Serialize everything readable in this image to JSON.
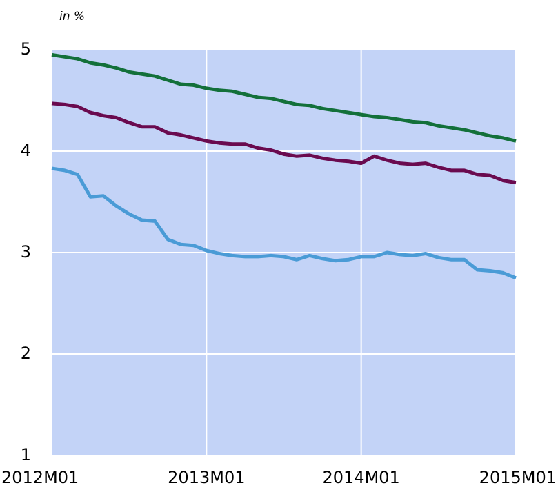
{
  "chart_data": {
    "type": "line",
    "y_axis_label": "in %",
    "categories": [
      "2012M01",
      null,
      null,
      null,
      null,
      null,
      null,
      null,
      null,
      null,
      null,
      null,
      "2013M01",
      null,
      null,
      null,
      null,
      null,
      null,
      null,
      null,
      null,
      null,
      null,
      "2014M01",
      null,
      null,
      null,
      null,
      null,
      null,
      null,
      null,
      null,
      null,
      null,
      "2015M01"
    ],
    "series": [
      {
        "color": "#13703a",
        "values": [
          4.95,
          4.93,
          4.91,
          4.87,
          4.85,
          4.82,
          4.78,
          4.76,
          4.74,
          4.7,
          4.66,
          4.65,
          4.62,
          4.6,
          4.59,
          4.56,
          4.53,
          4.52,
          4.49,
          4.46,
          4.45,
          4.42,
          4.4,
          4.38,
          4.36,
          4.34,
          4.33,
          4.31,
          4.29,
          4.28,
          4.25,
          4.23,
          4.21,
          4.18,
          4.15,
          4.13,
          4.1
        ]
      },
      {
        "color": "#6a0a4f",
        "values": [
          4.47,
          4.46,
          4.44,
          4.38,
          4.35,
          4.33,
          4.28,
          4.24,
          4.24,
          4.18,
          4.16,
          4.13,
          4.1,
          4.08,
          4.07,
          4.07,
          4.03,
          4.01,
          3.97,
          3.95,
          3.96,
          3.93,
          3.91,
          3.9,
          3.88,
          3.95,
          3.91,
          3.88,
          3.87,
          3.88,
          3.84,
          3.81,
          3.81,
          3.77,
          3.76,
          3.71,
          3.69
        ]
      },
      {
        "color": "#4a9bd6",
        "values": [
          3.83,
          3.81,
          3.77,
          3.55,
          3.56,
          3.46,
          3.38,
          3.32,
          3.31,
          3.13,
          3.08,
          3.07,
          3.02,
          2.99,
          2.97,
          2.96,
          2.96,
          2.97,
          2.96,
          2.93,
          2.97,
          2.94,
          2.92,
          2.93,
          2.96,
          2.96,
          3.0,
          2.98,
          2.97,
          2.99,
          2.95,
          2.93,
          2.93,
          2.83,
          2.82,
          2.8,
          2.75
        ]
      }
    ],
    "ylim": [
      1,
      5
    ],
    "yticks": [
      1,
      2,
      3,
      4,
      5
    ],
    "grid": true,
    "background": "#c3d3f7"
  }
}
